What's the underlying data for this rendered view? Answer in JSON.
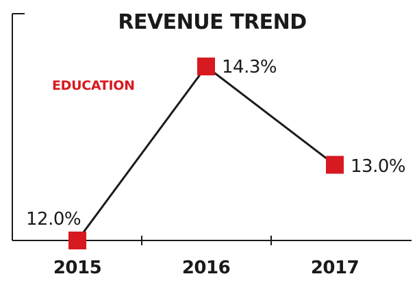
{
  "chart_data": {
    "type": "line",
    "title": "REVENUE TREND",
    "annotation": "EDUCATION",
    "categories": [
      "2015",
      "2016",
      "2017"
    ],
    "series": [
      {
        "values": [
          12.0,
          14.3,
          13.0
        ],
        "labels": [
          "12.0%",
          "14.3%",
          "13.0%"
        ]
      }
    ],
    "xlabel": "",
    "ylabel": "",
    "ylim": [
      12.0,
      14.5
    ],
    "grid": false,
    "legend": "none",
    "colors": {
      "line": "#1a1a1a",
      "marker": "#d71920",
      "annotation": "#d71920",
      "text": "#1a1a1a"
    }
  }
}
